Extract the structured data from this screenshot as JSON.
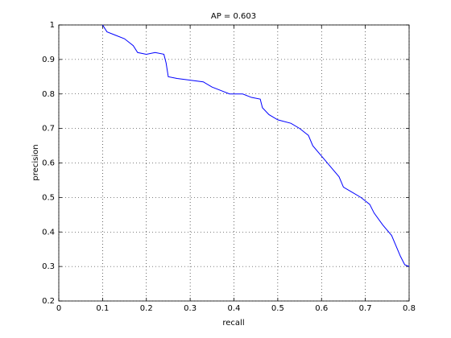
{
  "chart_data": {
    "type": "line",
    "title": "AP = 0.603",
    "x_label": "recall",
    "y_label": "precision",
    "series": [
      {
        "color": "#0000ff",
        "x": [
          0.1,
          0.11,
          0.13,
          0.15,
          0.17,
          0.18,
          0.2,
          0.22,
          0.24,
          0.245,
          0.25,
          0.27,
          0.3,
          0.33,
          0.35,
          0.37,
          0.39,
          0.42,
          0.44,
          0.46,
          0.465,
          0.48,
          0.5,
          0.53,
          0.55,
          0.57,
          0.58,
          0.6,
          0.62,
          0.64,
          0.65,
          0.67,
          0.69,
          0.71,
          0.72,
          0.74,
          0.76,
          0.77,
          0.78,
          0.79,
          0.8
        ],
        "values": [
          1.0,
          0.98,
          0.97,
          0.96,
          0.94,
          0.92,
          0.915,
          0.92,
          0.915,
          0.89,
          0.85,
          0.845,
          0.84,
          0.835,
          0.82,
          0.81,
          0.8,
          0.8,
          0.79,
          0.785,
          0.76,
          0.74,
          0.725,
          0.715,
          0.7,
          0.68,
          0.65,
          0.62,
          0.59,
          0.56,
          0.53,
          0.515,
          0.5,
          0.48,
          0.455,
          0.42,
          0.39,
          0.36,
          0.33,
          0.305,
          0.3
        ]
      }
    ],
    "xlim": [
      0,
      0.8
    ],
    "xticks": [
      0,
      0.1,
      0.2,
      0.3,
      0.4,
      0.5,
      0.6,
      0.7,
      0.8
    ],
    "ylim": [
      0.2,
      1
    ],
    "yticks": [
      0.2,
      0.3,
      0.4,
      0.5,
      0.6,
      0.7,
      0.8,
      0.9,
      1
    ],
    "grid": true
  }
}
